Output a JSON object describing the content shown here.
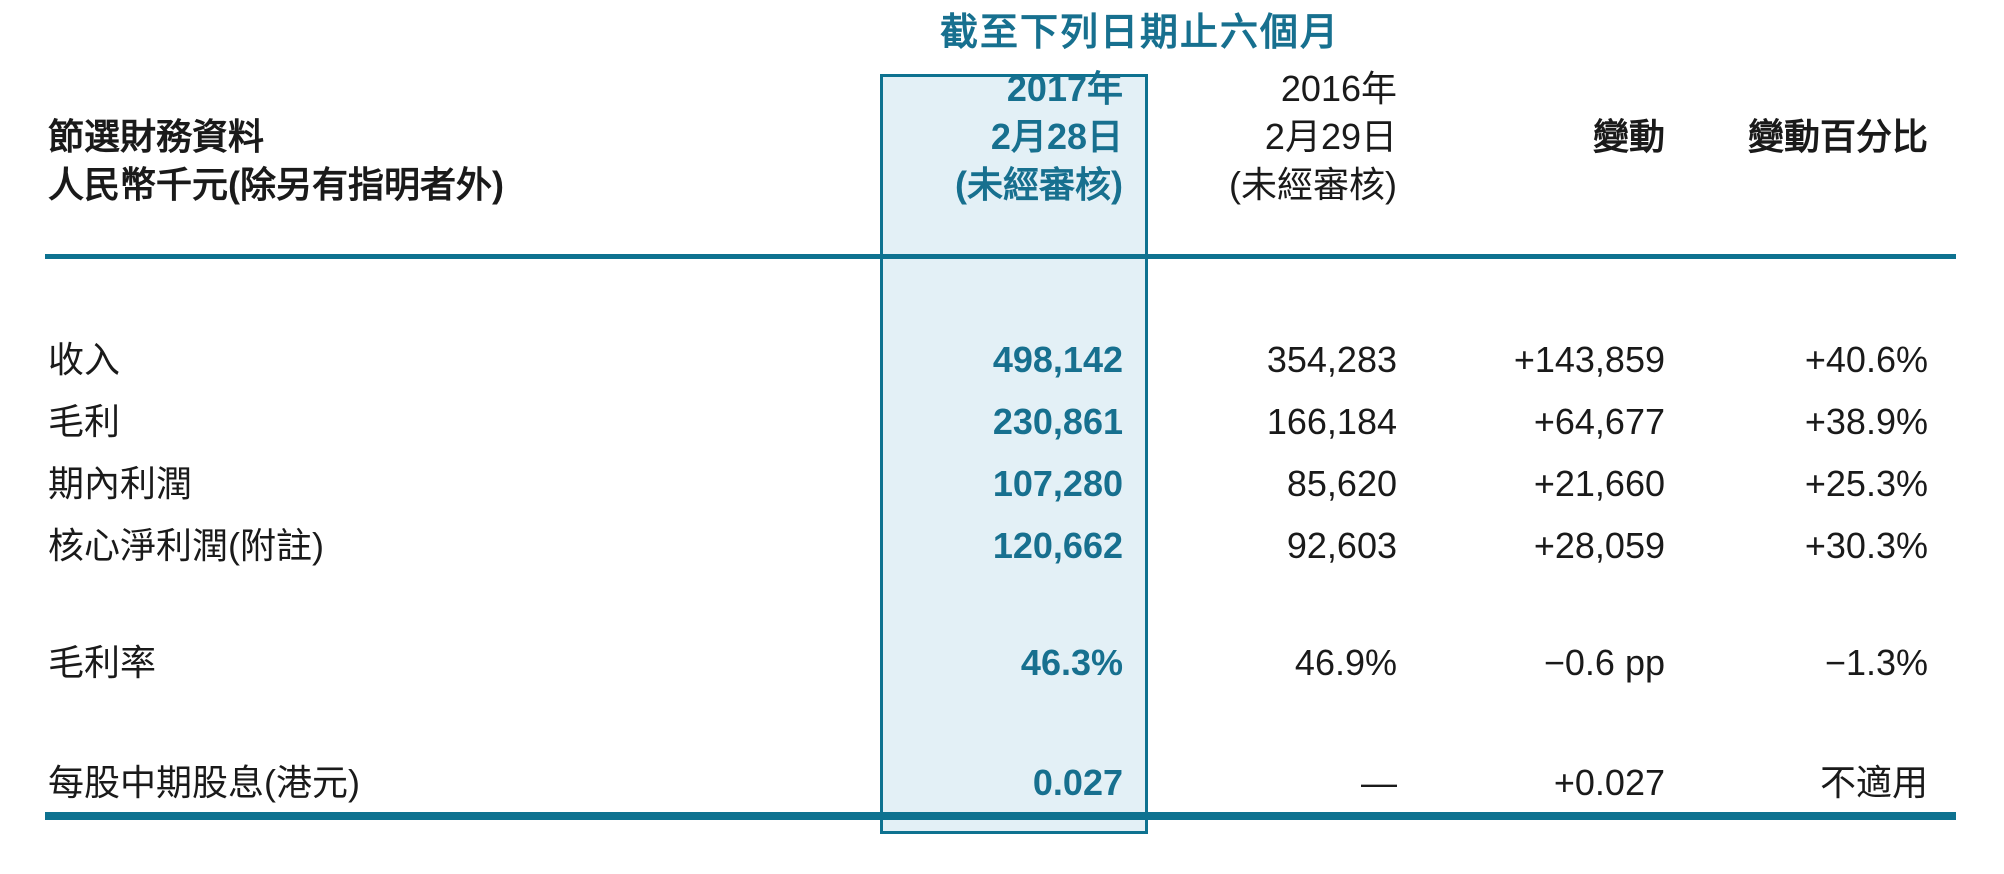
{
  "colors": {
    "teal_text": "#17708f",
    "rule": "#0e7290",
    "highlight_fill": "#e3f0f6",
    "body_text": "#1a1a1a"
  },
  "table": {
    "title": "截至下列日期止六個月",
    "stub_header": {
      "line1": "節選財務資料",
      "line2": "人民幣千元(除另有指明者外)"
    },
    "col_2017": {
      "line1": "2017年",
      "line2": "2月28日",
      "line3": "(未經審核)"
    },
    "col_2016": {
      "line1": "2016年",
      "line2": "2月29日",
      "line3": "(未經審核)"
    },
    "col_change": "變動",
    "col_change_pct": "變動百分比",
    "rows": [
      {
        "label": "收入",
        "v2017": "498,142",
        "v2016": "354,283",
        "change": "+143,859",
        "change_pct": "+40.6%"
      },
      {
        "label": "毛利",
        "v2017": "230,861",
        "v2016": "166,184",
        "change": "+64,677",
        "change_pct": "+38.9%"
      },
      {
        "label": "期內利潤",
        "v2017": "107,280",
        "v2016": "85,620",
        "change": "+21,660",
        "change_pct": "+25.3%"
      },
      {
        "label": "核心淨利潤(附註)",
        "v2017": "120,662",
        "v2016": "92,603",
        "change": "+28,059",
        "change_pct": "+30.3%"
      },
      {
        "label": "毛利率",
        "v2017": "46.3%",
        "v2016": "46.9%",
        "change": "−0.6 pp",
        "change_pct": "−1.3%"
      },
      {
        "label": "每股中期股息(港元)",
        "v2017": "0.027",
        "v2016": "—",
        "change": "+0.027",
        "change_pct": "不適用"
      }
    ]
  }
}
